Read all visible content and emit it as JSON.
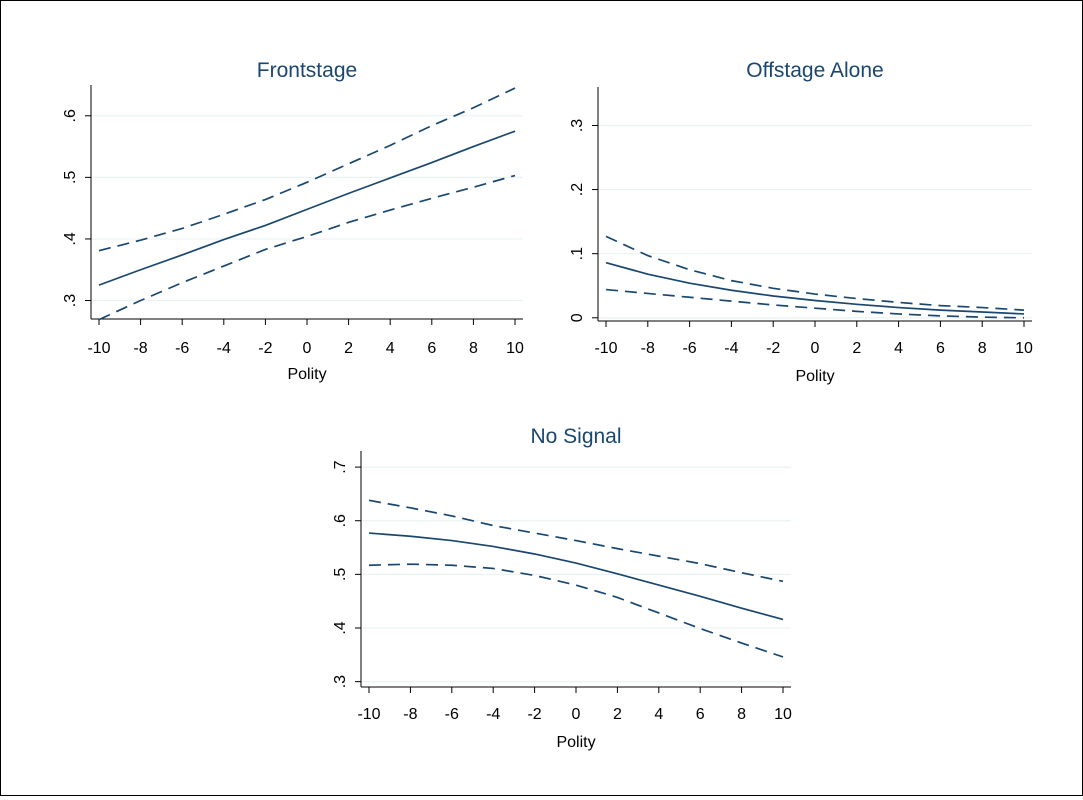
{
  "colors": {
    "line": "#1a476f",
    "grid": "#eaf2f3",
    "background": "#ffffff",
    "frame": "#000000"
  },
  "chart_data": [
    {
      "type": "line",
      "title": "Frontstage",
      "xlabel": "Polity",
      "ylabel": "",
      "xlim": [
        -10,
        10
      ],
      "ylim": [
        0.27,
        0.65
      ],
      "x_ticks": [
        -10,
        -8,
        -6,
        -4,
        -2,
        0,
        2,
        4,
        6,
        8,
        10
      ],
      "x_tick_labels": [
        "-10",
        "-8",
        "-6",
        "-4",
        "-2",
        "0",
        "2",
        "4",
        "6",
        "8",
        "10"
      ],
      "y_ticks": [
        0.3,
        0.4,
        0.5,
        0.6
      ],
      "y_tick_labels": [
        ".3",
        ".4",
        ".5",
        ".6"
      ],
      "grid": true,
      "x": [
        -10,
        -8,
        -6,
        -4,
        -2,
        0,
        2,
        4,
        6,
        8,
        10
      ],
      "series": [
        {
          "role": "estimate",
          "style": "solid",
          "values": [
            0.325,
            0.35,
            0.374,
            0.399,
            0.422,
            0.448,
            0.474,
            0.499,
            0.524,
            0.55,
            0.575
          ]
        },
        {
          "role": "upper",
          "style": "dashed",
          "values": [
            0.381,
            0.398,
            0.417,
            0.44,
            0.464,
            0.492,
            0.522,
            0.552,
            0.584,
            0.613,
            0.645
          ]
        },
        {
          "role": "lower",
          "style": "dashed",
          "values": [
            0.269,
            0.3,
            0.329,
            0.356,
            0.383,
            0.404,
            0.427,
            0.447,
            0.466,
            0.484,
            0.503
          ]
        }
      ]
    },
    {
      "type": "line",
      "title": "Offstage Alone",
      "xlabel": "Polity",
      "ylabel": "",
      "xlim": [
        -10,
        10
      ],
      "ylim": [
        -0.005,
        0.36
      ],
      "x_ticks": [
        -10,
        -8,
        -6,
        -4,
        -2,
        0,
        2,
        4,
        6,
        8,
        10
      ],
      "x_tick_labels": [
        "-10",
        "-8",
        "-6",
        "-4",
        "-2",
        "0",
        "2",
        "4",
        "6",
        "8",
        "10"
      ],
      "y_ticks": [
        0,
        0.1,
        0.2,
        0.3
      ],
      "y_tick_labels": [
        "0",
        ".1",
        ".2",
        ".3"
      ],
      "grid": true,
      "x": [
        -10,
        -8,
        -6,
        -4,
        -2,
        0,
        2,
        4,
        6,
        8,
        10
      ],
      "series": [
        {
          "role": "estimate",
          "style": "solid",
          "values": [
            0.086,
            0.068,
            0.054,
            0.043,
            0.034,
            0.027,
            0.021,
            0.016,
            0.012,
            0.009,
            0.006
          ]
        },
        {
          "role": "upper",
          "style": "dashed",
          "values": [
            0.127,
            0.097,
            0.075,
            0.058,
            0.046,
            0.037,
            0.03,
            0.024,
            0.019,
            0.016,
            0.012
          ]
        },
        {
          "role": "lower",
          "style": "dashed",
          "values": [
            0.044,
            0.038,
            0.032,
            0.026,
            0.02,
            0.015,
            0.01,
            0.006,
            0.003,
            0.001,
            0
          ]
        }
      ]
    },
    {
      "type": "line",
      "title": "No Signal",
      "xlabel": "Polity",
      "ylabel": "",
      "xlim": [
        -10,
        10
      ],
      "ylim": [
        0.29,
        0.73
      ],
      "x_ticks": [
        -10,
        -8,
        -6,
        -4,
        -2,
        0,
        2,
        4,
        6,
        8,
        10
      ],
      "x_tick_labels": [
        "-10",
        "-8",
        "-6",
        "-4",
        "-2",
        "0",
        "2",
        "4",
        "6",
        "8",
        "10"
      ],
      "y_ticks": [
        0.3,
        0.4,
        0.5,
        0.6,
        0.7
      ],
      "y_tick_labels": [
        ".3",
        ".4",
        ".5",
        ".6",
        ".7"
      ],
      "grid": true,
      "x": [
        -10,
        -8,
        -6,
        -4,
        -2,
        0,
        2,
        4,
        6,
        8,
        10
      ],
      "series": [
        {
          "role": "estimate",
          "style": "solid",
          "values": [
            0.577,
            0.571,
            0.563,
            0.552,
            0.538,
            0.521,
            0.501,
            0.48,
            0.459,
            0.437,
            0.416
          ]
        },
        {
          "role": "upper",
          "style": "dashed",
          "values": [
            0.638,
            0.624,
            0.609,
            0.591,
            0.577,
            0.563,
            0.548,
            0.534,
            0.52,
            0.503,
            0.487
          ]
        },
        {
          "role": "lower",
          "style": "dashed",
          "values": [
            0.517,
            0.519,
            0.517,
            0.511,
            0.498,
            0.48,
            0.457,
            0.428,
            0.399,
            0.372,
            0.346
          ]
        }
      ]
    }
  ]
}
